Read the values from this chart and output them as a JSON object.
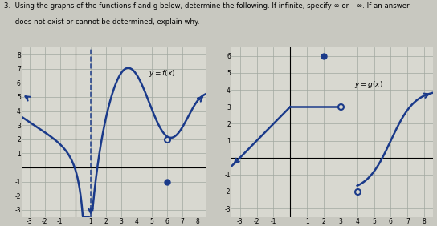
{
  "title_line1": "3.  Using the graphs of the functions f and g below, determine the following. If infinite, specify ∞ or −∞. If an answer",
  "title_line2": "     does not exist or cannot be determined, explain why.",
  "bg_color": "#c8c8c0",
  "graph_bg": "#d8d8d0",
  "line_color": "#1a3a8a",
  "grid_color": "#a0a8a0",
  "axis_color": "#000000"
}
